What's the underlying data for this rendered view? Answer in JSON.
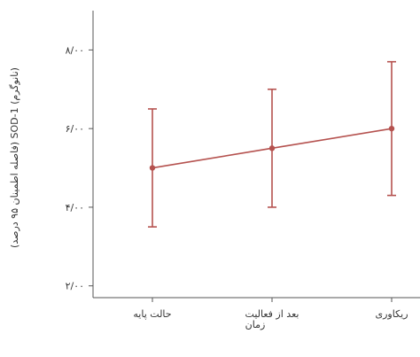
{
  "chart_data": {
    "type": "line",
    "xlabel": "زمان",
    "ylabel": "(فاصله اطمینان ۹۵ درصد) SOD-1 (نانوگرم)",
    "categories": [
      "حالت پایه",
      "بعد از فعالیت",
      "ریکاوری"
    ],
    "series": [
      {
        "values": [
          5.0,
          5.5,
          6.0
        ],
        "ci_lower": [
          3.5,
          4.0,
          4.3
        ],
        "ci_upper": [
          6.5,
          7.0,
          7.7
        ]
      }
    ],
    "yticks": [
      2,
      4,
      6,
      8
    ],
    "ytick_labels": [
      "۲/۰۰",
      "۴/۰۰",
      "۶/۰۰",
      "۸/۰۰"
    ],
    "ylim": [
      1.7,
      9.0
    ],
    "grid": false,
    "colors": {
      "series": "#b5524f",
      "axis": "#555555"
    }
  }
}
